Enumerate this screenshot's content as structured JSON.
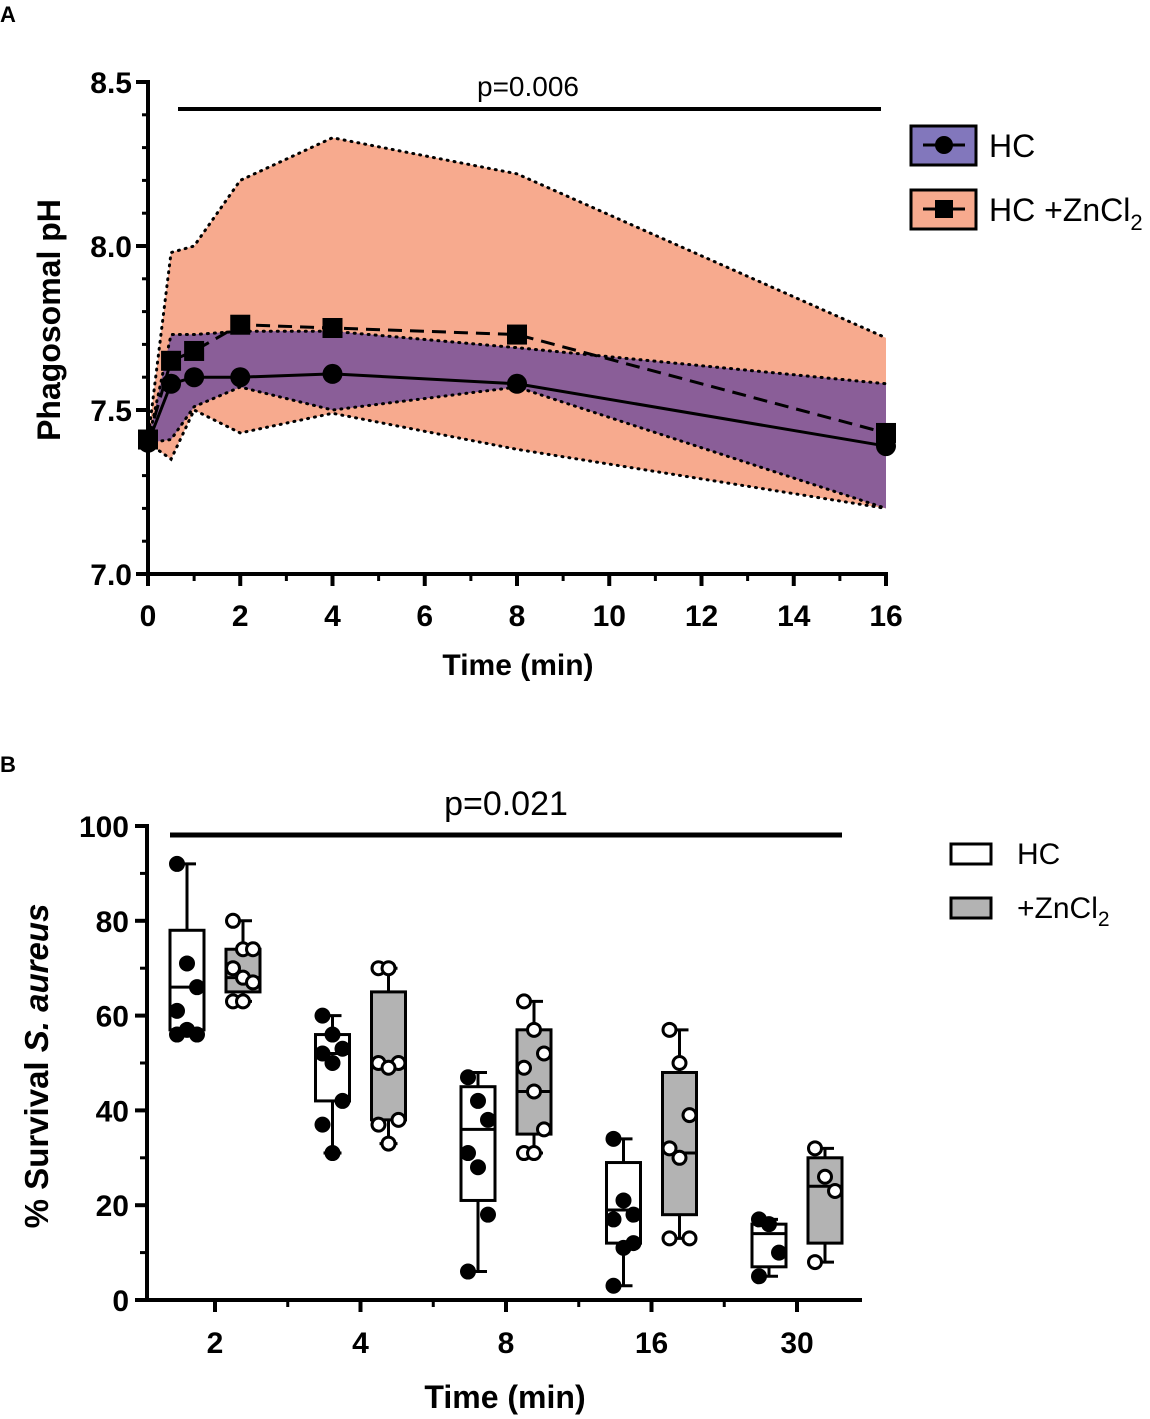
{
  "colors": {
    "hc_band": "#8277BC",
    "zn_band": "#F7AA8E",
    "overlap_band": "#8A5E98",
    "box_zn_fill": "#B3B3B3",
    "ink": "#000000"
  },
  "chart_data": [
    {
      "panel": "A",
      "type": "line",
      "title": "",
      "xlabel": "Time (min)",
      "ylabel": "Phagosomal pH",
      "xlim": [
        0,
        16
      ],
      "ylim": [
        7.0,
        8.5
      ],
      "xticks": [
        "0",
        "2",
        "4",
        "6",
        "8",
        "10",
        "12",
        "14",
        "16"
      ],
      "yticks": [
        "7.0",
        "7.5",
        "8.0",
        "8.5"
      ],
      "annotation": "p=0.006",
      "x": [
        0,
        0.5,
        1,
        2,
        4,
        8,
        16
      ],
      "series": [
        {
          "name": "HC",
          "marker": "circle",
          "line": "solid",
          "values": [
            7.4,
            7.58,
            7.6,
            7.6,
            7.61,
            7.58,
            7.39
          ],
          "band_upper": [
            7.4,
            7.73,
            7.73,
            7.74,
            7.74,
            7.69,
            7.58
          ],
          "band_lower": [
            7.4,
            7.41,
            7.51,
            7.57,
            7.5,
            7.57,
            7.2
          ]
        },
        {
          "name": "HC +ZnCl2",
          "legend_main": "HC +ZnCl",
          "legend_sub": "2",
          "marker": "square",
          "line": "dashed",
          "values": [
            7.41,
            7.65,
            7.68,
            7.76,
            7.75,
            7.73,
            7.43
          ],
          "band_upper": [
            7.41,
            7.98,
            8.0,
            8.2,
            8.33,
            8.22,
            7.72
          ],
          "band_lower": [
            7.4,
            7.35,
            7.5,
            7.43,
            7.49,
            7.38,
            7.2
          ]
        }
      ]
    },
    {
      "panel": "B",
      "type": "box",
      "title": "",
      "xlabel": "Time (min)",
      "ylabel_main": "% Survival ",
      "ylabel_italic": "S. aureus",
      "ylim": [
        0,
        100
      ],
      "yticks": [
        "0",
        "20",
        "40",
        "60",
        "80",
        "100"
      ],
      "categories": [
        "2",
        "4",
        "8",
        "16",
        "30"
      ],
      "annotation": "p=0.021",
      "legend": [
        {
          "name": "HC",
          "main": "HC",
          "sub": ""
        },
        {
          "name": "+ZnCl2",
          "main": "+ZnCl",
          "sub": "2"
        }
      ],
      "groups": [
        {
          "name": "HC",
          "boxes": [
            {
              "min": 56,
              "q1": 57,
              "median": 66,
              "q3": 78,
              "max": 92,
              "points": [
                92,
                71,
                66,
                61,
                57,
                56,
                56
              ]
            },
            {
              "min": 31,
              "q1": 42,
              "median": 52,
              "q3": 56,
              "max": 60,
              "points": [
                60,
                56,
                53,
                52,
                50,
                42,
                37,
                31
              ]
            },
            {
              "min": 6,
              "q1": 21,
              "median": 36,
              "q3": 45,
              "max": 48,
              "points": [
                47,
                42,
                38,
                31,
                28,
                18,
                6
              ]
            },
            {
              "min": 3,
              "q1": 12,
              "median": 19,
              "q3": 29,
              "max": 34,
              "points": [
                34,
                21,
                18,
                17,
                11,
                12,
                3
              ]
            },
            {
              "min": 5,
              "q1": 7,
              "median": 14,
              "q3": 16,
              "max": 17,
              "points": [
                17,
                16,
                10,
                5
              ]
            }
          ]
        },
        {
          "name": "+ZnCl2",
          "boxes": [
            {
              "min": 63,
              "q1": 65,
              "median": 68,
              "q3": 74,
              "max": 80,
              "points": [
                80,
                74,
                74,
                70,
                68,
                67,
                63,
                63
              ]
            },
            {
              "min": 33,
              "q1": 38,
              "median": 49,
              "q3": 65,
              "max": 70,
              "points": [
                70,
                70,
                50,
                50,
                49,
                38,
                37,
                33
              ]
            },
            {
              "min": 31,
              "q1": 35,
              "median": 44,
              "q3": 57,
              "max": 63,
              "points": [
                63,
                57,
                52,
                49,
                44,
                36,
                31,
                31
              ]
            },
            {
              "min": 13,
              "q1": 18,
              "median": 31,
              "q3": 48,
              "max": 57,
              "points": [
                57,
                50,
                39,
                32,
                30,
                13,
                13
              ]
            },
            {
              "min": 8,
              "q1": 12,
              "median": 24,
              "q3": 30,
              "max": 32,
              "points": [
                32,
                26,
                23,
                8
              ]
            }
          ]
        }
      ]
    }
  ]
}
